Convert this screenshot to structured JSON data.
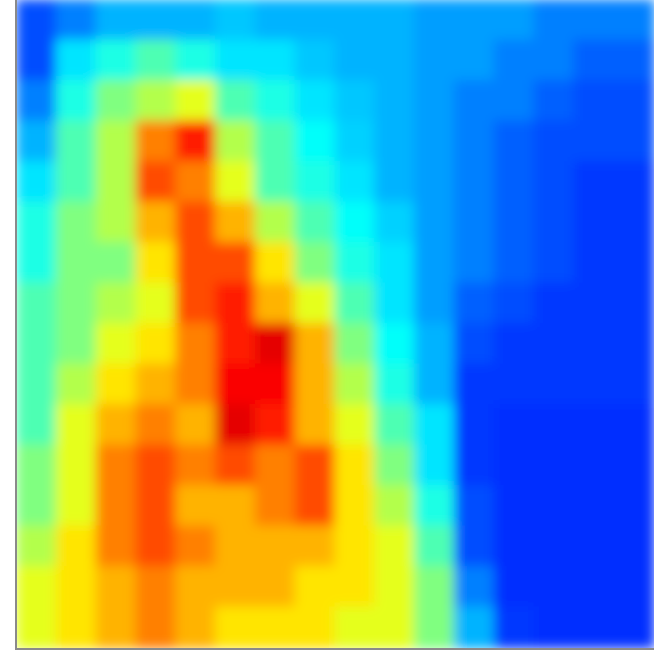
{
  "chart_data": {
    "type": "heatmap",
    "colormap": "jet",
    "zlim": [
      0,
      1
    ],
    "z": [
      [
        0.2,
        0.25,
        0.3,
        0.3,
        0.3,
        0.32,
        0.3,
        0.3,
        0.3,
        0.3,
        0.28,
        0.28,
        0.28,
        0.25,
        0.25,
        0.25
      ],
      [
        0.2,
        0.35,
        0.4,
        0.45,
        0.4,
        0.35,
        0.35,
        0.32,
        0.3,
        0.3,
        0.28,
        0.28,
        0.25,
        0.25,
        0.22,
        0.22
      ],
      [
        0.25,
        0.4,
        0.5,
        0.55,
        0.6,
        0.45,
        0.4,
        0.35,
        0.32,
        0.3,
        0.28,
        0.25,
        0.25,
        0.22,
        0.2,
        0.2
      ],
      [
        0.3,
        0.45,
        0.55,
        0.75,
        0.85,
        0.55,
        0.45,
        0.38,
        0.33,
        0.3,
        0.28,
        0.25,
        0.22,
        0.2,
        0.2,
        0.2
      ],
      [
        0.35,
        0.45,
        0.55,
        0.8,
        0.75,
        0.6,
        0.45,
        0.4,
        0.35,
        0.3,
        0.28,
        0.25,
        0.22,
        0.2,
        0.18,
        0.18
      ],
      [
        0.4,
        0.5,
        0.55,
        0.7,
        0.8,
        0.7,
        0.55,
        0.45,
        0.38,
        0.33,
        0.28,
        0.25,
        0.22,
        0.2,
        0.18,
        0.18
      ],
      [
        0.4,
        0.5,
        0.5,
        0.65,
        0.8,
        0.8,
        0.65,
        0.5,
        0.4,
        0.35,
        0.28,
        0.25,
        0.22,
        0.2,
        0.18,
        0.18
      ],
      [
        0.45,
        0.5,
        0.55,
        0.6,
        0.8,
        0.85,
        0.7,
        0.6,
        0.45,
        0.35,
        0.28,
        0.22,
        0.2,
        0.18,
        0.18,
        0.18
      ],
      [
        0.45,
        0.5,
        0.6,
        0.65,
        0.75,
        0.85,
        0.9,
        0.7,
        0.5,
        0.38,
        0.3,
        0.2,
        0.18,
        0.18,
        0.18,
        0.18
      ],
      [
        0.45,
        0.55,
        0.65,
        0.7,
        0.75,
        0.88,
        0.88,
        0.7,
        0.55,
        0.4,
        0.3,
        0.18,
        0.18,
        0.18,
        0.18,
        0.18
      ],
      [
        0.45,
        0.6,
        0.7,
        0.75,
        0.7,
        0.9,
        0.85,
        0.7,
        0.6,
        0.45,
        0.35,
        0.18,
        0.17,
        0.17,
        0.17,
        0.17
      ],
      [
        0.5,
        0.6,
        0.75,
        0.8,
        0.75,
        0.8,
        0.75,
        0.8,
        0.65,
        0.5,
        0.35,
        0.18,
        0.17,
        0.17,
        0.17,
        0.17
      ],
      [
        0.5,
        0.6,
        0.75,
        0.8,
        0.7,
        0.7,
        0.75,
        0.8,
        0.65,
        0.55,
        0.4,
        0.2,
        0.17,
        0.17,
        0.17,
        0.17
      ],
      [
        0.55,
        0.65,
        0.75,
        0.8,
        0.75,
        0.7,
        0.7,
        0.7,
        0.65,
        0.6,
        0.45,
        0.2,
        0.17,
        0.17,
        0.17,
        0.17
      ],
      [
        0.6,
        0.65,
        0.7,
        0.75,
        0.7,
        0.7,
        0.7,
        0.65,
        0.65,
        0.6,
        0.5,
        0.25,
        0.17,
        0.17,
        0.17,
        0.17
      ],
      [
        0.6,
        0.65,
        0.7,
        0.75,
        0.7,
        0.65,
        0.65,
        0.65,
        0.6,
        0.6,
        0.5,
        0.3,
        0.18,
        0.17,
        0.17,
        0.17
      ]
    ]
  }
}
